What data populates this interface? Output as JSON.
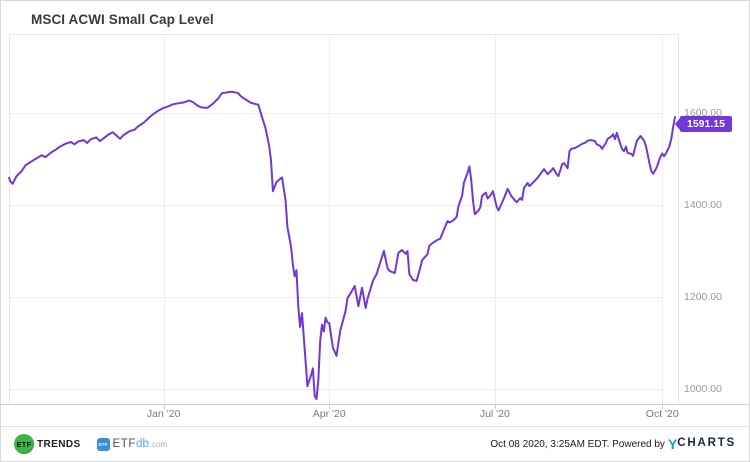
{
  "card": {
    "title": "MSCI ACWI Small Cap Level"
  },
  "colors": {
    "line": "#7137d8",
    "badge": "#7137d8",
    "grid": "#ededed",
    "frame": "#e6e6e6",
    "axis": "#cfcfcf",
    "etf_trends_green": "#3fb549",
    "etfdb_blue": "#3a8dde",
    "ycharts_blue": "#14a0dc"
  },
  "chart_data": {
    "type": "line",
    "title": "MSCI ACWI Small Cap Level",
    "grid": true,
    "legend": "none",
    "x_range": [
      "2019-10-08",
      "2020-10-08"
    ],
    "ylim": [
      967,
      1772
    ],
    "y_ticks": [
      {
        "label": "1600.00",
        "value": 1600
      },
      {
        "label": "1400.00",
        "value": 1400
      },
      {
        "label": "1200.00",
        "value": 1200
      },
      {
        "label": "1000.00",
        "value": 1000
      }
    ],
    "x_ticks": [
      {
        "label": "Jan '20",
        "date": "2020-01-01"
      },
      {
        "label": "Apr '20",
        "date": "2020-04-01"
      },
      {
        "label": "Jul '20",
        "date": "2020-07-01"
      },
      {
        "label": "Oct '20",
        "date": "2020-10-01"
      }
    ],
    "last_value": 1591.15,
    "last_value_label": "1591.15",
    "series": [
      {
        "name": "MSCI ACWI Small Cap Level",
        "points": [
          [
            "2019-10-08",
            1459
          ],
          [
            "2019-10-09",
            1450
          ],
          [
            "2019-10-10",
            1446
          ],
          [
            "2019-10-12",
            1462
          ],
          [
            "2019-10-15",
            1474
          ],
          [
            "2019-10-17",
            1486
          ],
          [
            "2019-10-20",
            1494
          ],
          [
            "2019-10-23",
            1501
          ],
          [
            "2019-10-26",
            1508
          ],
          [
            "2019-10-28",
            1504
          ],
          [
            "2019-10-31",
            1514
          ],
          [
            "2019-11-03",
            1521
          ],
          [
            "2019-11-05",
            1527
          ],
          [
            "2019-11-08",
            1533
          ],
          [
            "2019-11-11",
            1537
          ],
          [
            "2019-11-13",
            1532
          ],
          [
            "2019-11-15",
            1538
          ],
          [
            "2019-11-18",
            1541
          ],
          [
            "2019-11-20",
            1535
          ],
          [
            "2019-11-22",
            1543
          ],
          [
            "2019-11-25",
            1547
          ],
          [
            "2019-11-27",
            1539
          ],
          [
            "2019-11-30",
            1548
          ],
          [
            "2019-12-02",
            1554
          ],
          [
            "2019-12-04",
            1558
          ],
          [
            "2019-12-06",
            1551
          ],
          [
            "2019-12-08",
            1544
          ],
          [
            "2019-12-10",
            1552
          ],
          [
            "2019-12-13",
            1560
          ],
          [
            "2019-12-16",
            1564
          ],
          [
            "2019-12-18",
            1571
          ],
          [
            "2019-12-21",
            1579
          ],
          [
            "2019-12-24",
            1590
          ],
          [
            "2019-12-26",
            1597
          ],
          [
            "2019-12-29",
            1605
          ],
          [
            "2020-01-01",
            1611
          ],
          [
            "2020-01-04",
            1615
          ],
          [
            "2020-01-06",
            1619
          ],
          [
            "2020-01-09",
            1621
          ],
          [
            "2020-01-12",
            1623
          ],
          [
            "2020-01-15",
            1627
          ],
          [
            "2020-01-17",
            1624
          ],
          [
            "2020-01-20",
            1615
          ],
          [
            "2020-01-22",
            1612
          ],
          [
            "2020-01-25",
            1611
          ],
          [
            "2020-01-28",
            1620
          ],
          [
            "2020-01-31",
            1632
          ],
          [
            "2020-02-02",
            1643
          ],
          [
            "2020-02-05",
            1645
          ],
          [
            "2020-02-08",
            1646
          ],
          [
            "2020-02-11",
            1643
          ],
          [
            "2020-02-12",
            1638
          ],
          [
            "2020-02-14",
            1632
          ],
          [
            "2020-02-16",
            1627
          ],
          [
            "2020-02-18",
            1622
          ],
          [
            "2020-02-20",
            1620
          ],
          [
            "2020-02-22",
            1618
          ],
          [
            "2020-02-24",
            1592
          ],
          [
            "2020-02-26",
            1566
          ],
          [
            "2020-02-28",
            1528
          ],
          [
            "2020-02-29",
            1497
          ],
          [
            "2020-03-01",
            1430
          ],
          [
            "2020-03-03",
            1450
          ],
          [
            "2020-03-06",
            1460
          ],
          [
            "2020-03-08",
            1410
          ],
          [
            "2020-03-09",
            1352
          ],
          [
            "2020-03-11",
            1310
          ],
          [
            "2020-03-12",
            1270
          ],
          [
            "2020-03-13",
            1245
          ],
          [
            "2020-03-14",
            1258
          ],
          [
            "2020-03-15",
            1178
          ],
          [
            "2020-03-16",
            1135
          ],
          [
            "2020-03-17",
            1165
          ],
          [
            "2020-03-19",
            1060
          ],
          [
            "2020-03-20",
            1006
          ],
          [
            "2020-03-22",
            1030
          ],
          [
            "2020-03-23",
            1045
          ],
          [
            "2020-03-24",
            985
          ],
          [
            "2020-03-25",
            978
          ],
          [
            "2020-03-26",
            1018
          ],
          [
            "2020-03-27",
            1105
          ],
          [
            "2020-03-28",
            1140
          ],
          [
            "2020-03-29",
            1125
          ],
          [
            "2020-03-30",
            1155
          ],
          [
            "2020-03-31",
            1145
          ],
          [
            "2020-04-01",
            1143
          ],
          [
            "2020-04-03",
            1090
          ],
          [
            "2020-04-05",
            1072
          ],
          [
            "2020-04-07",
            1126
          ],
          [
            "2020-04-10",
            1170
          ],
          [
            "2020-04-11",
            1198
          ],
          [
            "2020-04-13",
            1210
          ],
          [
            "2020-04-15",
            1224
          ],
          [
            "2020-04-17",
            1180
          ],
          [
            "2020-04-19",
            1220
          ],
          [
            "2020-04-21",
            1176
          ],
          [
            "2020-04-22",
            1196
          ],
          [
            "2020-04-25",
            1235
          ],
          [
            "2020-04-27",
            1250
          ],
          [
            "2020-05-01",
            1300
          ],
          [
            "2020-05-03",
            1263
          ],
          [
            "2020-05-04",
            1257
          ],
          [
            "2020-05-07",
            1252
          ],
          [
            "2020-05-09",
            1296
          ],
          [
            "2020-05-11",
            1302
          ],
          [
            "2020-05-13",
            1294
          ],
          [
            "2020-05-14",
            1300
          ],
          [
            "2020-05-15",
            1250
          ],
          [
            "2020-05-17",
            1237
          ],
          [
            "2020-05-19",
            1235
          ],
          [
            "2020-05-21",
            1263
          ],
          [
            "2020-05-22",
            1280
          ],
          [
            "2020-05-25",
            1293
          ],
          [
            "2020-05-26",
            1311
          ],
          [
            "2020-05-28",
            1318
          ],
          [
            "2020-05-30",
            1323
          ],
          [
            "2020-06-01",
            1327
          ],
          [
            "2020-06-02",
            1337
          ],
          [
            "2020-06-05",
            1365
          ],
          [
            "2020-06-06",
            1362
          ],
          [
            "2020-06-08",
            1366
          ],
          [
            "2020-06-10",
            1374
          ],
          [
            "2020-06-11",
            1398
          ],
          [
            "2020-06-13",
            1420
          ],
          [
            "2020-06-14",
            1448
          ],
          [
            "2020-06-16",
            1470
          ],
          [
            "2020-06-17",
            1484
          ],
          [
            "2020-06-18",
            1455
          ],
          [
            "2020-06-19",
            1410
          ],
          [
            "2020-06-20",
            1380
          ],
          [
            "2020-06-22",
            1388
          ],
          [
            "2020-06-23",
            1395
          ],
          [
            "2020-06-24",
            1420
          ],
          [
            "2020-06-26",
            1427
          ],
          [
            "2020-06-27",
            1414
          ],
          [
            "2020-06-29",
            1423
          ],
          [
            "2020-06-30",
            1430
          ],
          [
            "2020-07-01",
            1412
          ],
          [
            "2020-07-02",
            1396
          ],
          [
            "2020-07-03",
            1388
          ],
          [
            "2020-07-06",
            1415
          ],
          [
            "2020-07-08",
            1435
          ],
          [
            "2020-07-10",
            1420
          ],
          [
            "2020-07-12",
            1410
          ],
          [
            "2020-07-13",
            1406
          ],
          [
            "2020-07-15",
            1415
          ],
          [
            "2020-07-16",
            1411
          ],
          [
            "2020-07-17",
            1437
          ],
          [
            "2020-07-19",
            1448
          ],
          [
            "2020-07-20",
            1441
          ],
          [
            "2020-07-22",
            1449
          ],
          [
            "2020-07-24",
            1457
          ],
          [
            "2020-07-26",
            1467
          ],
          [
            "2020-07-28",
            1478
          ],
          [
            "2020-07-30",
            1467
          ],
          [
            "2020-08-01",
            1475
          ],
          [
            "2020-08-02",
            1480
          ],
          [
            "2020-08-04",
            1467
          ],
          [
            "2020-08-05",
            1463
          ],
          [
            "2020-08-07",
            1489
          ],
          [
            "2020-08-08",
            1491
          ],
          [
            "2020-08-10",
            1480
          ],
          [
            "2020-08-11",
            1517
          ],
          [
            "2020-08-12",
            1522
          ],
          [
            "2020-08-14",
            1524
          ],
          [
            "2020-08-16",
            1528
          ],
          [
            "2020-08-18",
            1533
          ],
          [
            "2020-08-20",
            1536
          ],
          [
            "2020-08-21",
            1540
          ],
          [
            "2020-08-23",
            1541
          ],
          [
            "2020-08-25",
            1539
          ],
          [
            "2020-08-26",
            1532
          ],
          [
            "2020-08-28",
            1528
          ],
          [
            "2020-08-29",
            1522
          ],
          [
            "2020-08-31",
            1535
          ],
          [
            "2020-09-01",
            1544
          ],
          [
            "2020-09-03",
            1549
          ],
          [
            "2020-09-04",
            1554
          ],
          [
            "2020-09-05",
            1543
          ],
          [
            "2020-09-06",
            1557
          ],
          [
            "2020-09-08",
            1532
          ],
          [
            "2020-09-09",
            1521
          ],
          [
            "2020-09-10",
            1517
          ],
          [
            "2020-09-11",
            1527
          ],
          [
            "2020-09-12",
            1513
          ],
          [
            "2020-09-14",
            1511
          ],
          [
            "2020-09-15",
            1507
          ],
          [
            "2020-09-16",
            1524
          ],
          [
            "2020-09-17",
            1539
          ],
          [
            "2020-09-19",
            1550
          ],
          [
            "2020-09-21",
            1540
          ],
          [
            "2020-09-22",
            1528
          ],
          [
            "2020-09-23",
            1510
          ],
          [
            "2020-09-24",
            1490
          ],
          [
            "2020-09-25",
            1474
          ],
          [
            "2020-09-26",
            1468
          ],
          [
            "2020-09-28",
            1482
          ],
          [
            "2020-09-29",
            1494
          ],
          [
            "2020-09-30",
            1505
          ],
          [
            "2020-10-01",
            1512
          ],
          [
            "2020-10-02",
            1506
          ],
          [
            "2020-10-03",
            1512
          ],
          [
            "2020-10-04",
            1520
          ],
          [
            "2020-10-05",
            1528
          ],
          [
            "2020-10-06",
            1545
          ],
          [
            "2020-10-07",
            1570
          ],
          [
            "2020-10-08",
            1591.15
          ]
        ]
      }
    ]
  },
  "footer": {
    "etf_trends": {
      "circle_text": "ETF",
      "text": "TRENDS"
    },
    "etfdb": {
      "badge_text": "ETF",
      "part1": "ETF",
      "part2": "db",
      "part3": ".com"
    },
    "timestamp": "Oct 08 2020, 3:25AM EDT. Powered by",
    "ycharts_y": "Y",
    "ycharts_rest": "CHARTS"
  }
}
